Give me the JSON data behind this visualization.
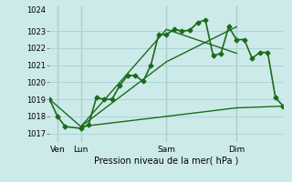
{
  "xlabel": "Pression niveau de la mer( hPa )",
  "bg_color": "#cdeaea",
  "grid_color": "#afd4d4",
  "line_color": "#1a6b1a",
  "ylim": [
    1016.5,
    1024.5
  ],
  "xlim": [
    0,
    30
  ],
  "yticks": [
    1017,
    1018,
    1019,
    1020,
    1021,
    1022,
    1023
  ],
  "ytick_top": 1024,
  "xtick_positions": [
    1,
    4,
    15,
    24
  ],
  "xtick_labels": [
    "Ven",
    "Lun",
    "Sam",
    "Dim"
  ],
  "vlines": [
    1,
    4,
    15,
    24
  ],
  "series": [
    {
      "x": [
        0,
        1,
        2,
        4,
        5,
        6,
        7,
        8,
        9,
        10,
        11,
        12,
        13,
        14,
        15,
        16,
        17,
        18,
        19,
        20,
        21,
        22,
        23,
        24,
        25,
        26,
        27,
        28,
        29,
        30
      ],
      "y": [
        1019.0,
        1018.0,
        1017.4,
        1017.3,
        1017.5,
        1019.1,
        1019.0,
        1019.0,
        1019.8,
        1020.4,
        1020.4,
        1020.05,
        1021.0,
        1022.8,
        1022.8,
        1023.1,
        1023.0,
        1023.05,
        1023.5,
        1023.65,
        1021.55,
        1021.7,
        1023.25,
        1022.5,
        1022.5,
        1021.4,
        1021.75,
        1021.75,
        1019.1,
        1018.6
      ],
      "marker": "D",
      "markersize": 2.5,
      "linewidth": 1.2
    },
    {
      "x": [
        0,
        4,
        15,
        24,
        30
      ],
      "y": [
        1019.0,
        1017.4,
        1018.0,
        1018.5,
        1018.6
      ],
      "marker": null,
      "linewidth": 1.0
    },
    {
      "x": [
        4,
        15,
        24
      ],
      "y": [
        1017.4,
        1021.2,
        1023.25
      ],
      "marker": null,
      "linewidth": 1.0
    },
    {
      "x": [
        4,
        15,
        24
      ],
      "y": [
        1017.4,
        1023.1,
        1021.7
      ],
      "marker": null,
      "linewidth": 1.0
    }
  ]
}
